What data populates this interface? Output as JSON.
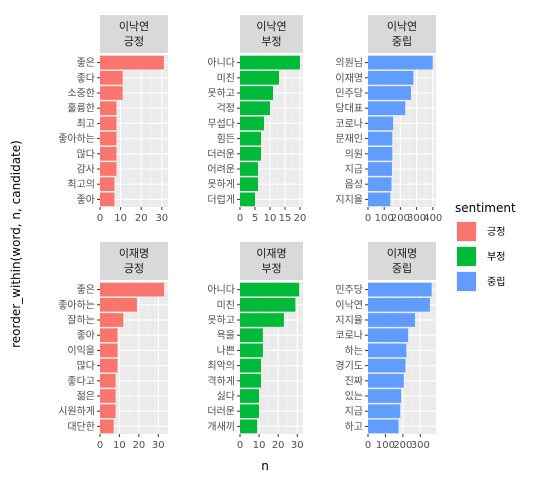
{
  "chart_data": {
    "type": "bar",
    "orientation": "horizontal",
    "xlabel": "n",
    "ylabel": "reorder_within(word, n, candidate)",
    "legend": {
      "title": "sentiment",
      "placement": "right",
      "entries": [
        {
          "name": "긍정",
          "color": "#F8766D"
        },
        {
          "name": "부정",
          "color": "#00BA38"
        },
        {
          "name": "중립",
          "color": "#619CFF"
        }
      ]
    },
    "panels": [
      {
        "candidate": "이낙연",
        "sentiment": "긍정",
        "color": "#F8766D",
        "xlim": [
          0,
          33
        ],
        "xticks": [
          0,
          10,
          20,
          30
        ],
        "categories": [
          "좋은",
          "좋다",
          "소중한",
          "훌륭한",
          "최고",
          "좋아하는",
          "많다",
          "감사",
          "최고의",
          "좋아"
        ],
        "values": [
          31,
          11,
          11,
          8,
          8,
          8,
          8,
          8,
          7,
          7
        ]
      },
      {
        "candidate": "이낙연",
        "sentiment": "부정",
        "color": "#00BA38",
        "xlim": [
          0,
          21
        ],
        "xticks": [
          0,
          5,
          10,
          15,
          20
        ],
        "tick_labels": [
          "0",
          "5",
          "10",
          "15",
          "20"
        ],
        "categories": [
          "아니다",
          "미친",
          "못하고",
          "걱정",
          "무섭다",
          "힘든",
          "더러운",
          "어려운",
          "못하게",
          "더럽게"
        ],
        "values": [
          20,
          13,
          11,
          10,
          8,
          7,
          7,
          6,
          6,
          5
        ]
      },
      {
        "candidate": "이낙연",
        "sentiment": "중립",
        "color": "#619CFF",
        "xlim": [
          0,
          420
        ],
        "xticks": [
          0,
          100,
          200,
          300,
          400
        ],
        "tick_labels": [
          "0",
          "100",
          "200",
          "300",
          "400"
        ],
        "categories": [
          "의원님",
          "이재명",
          "민주당",
          "당대표",
          "코로나",
          "문재인",
          "의원",
          "지금",
          "음성",
          "지지율"
        ],
        "values": [
          400,
          280,
          265,
          230,
          155,
          150,
          150,
          148,
          145,
          138
        ]
      },
      {
        "candidate": "이재명",
        "sentiment": "긍정",
        "color": "#F8766D",
        "xlim": [
          0,
          35
        ],
        "xticks": [
          0,
          10,
          20,
          30
        ],
        "categories": [
          "좋은",
          "좋아하는",
          "잘하는",
          "좋아",
          "이익을",
          "많다",
          "좋다고",
          "젊은",
          "시원하게",
          "대단한"
        ],
        "values": [
          33,
          19,
          12,
          9,
          9,
          9,
          8,
          8,
          8,
          7
        ]
      },
      {
        "candidate": "이재명",
        "sentiment": "부정",
        "color": "#00BA38",
        "xlim": [
          0,
          33
        ],
        "xticks": [
          0,
          10,
          20,
          30
        ],
        "categories": [
          "아니다",
          "미친",
          "못하고",
          "욕을",
          "나쁜",
          "최악의",
          "격하게",
          "싫다",
          "더러운",
          "개새끼"
        ],
        "values": [
          31,
          29,
          23,
          12,
          12,
          11,
          11,
          10,
          10,
          9
        ]
      },
      {
        "candidate": "이재명",
        "sentiment": "중립",
        "color": "#619CFF",
        "xlim": [
          0,
          390
        ],
        "xticks": [
          0,
          100,
          200,
          300
        ],
        "tick_labels": [
          "0",
          "100",
          "200",
          "300"
        ],
        "categories": [
          "민주당",
          "이낙연",
          "지지율",
          "코로나",
          "하는",
          "경기도",
          "진짜",
          "있는",
          "지금",
          "하고"
        ],
        "values": [
          365,
          355,
          270,
          230,
          220,
          215,
          205,
          190,
          185,
          175
        ]
      }
    ]
  }
}
